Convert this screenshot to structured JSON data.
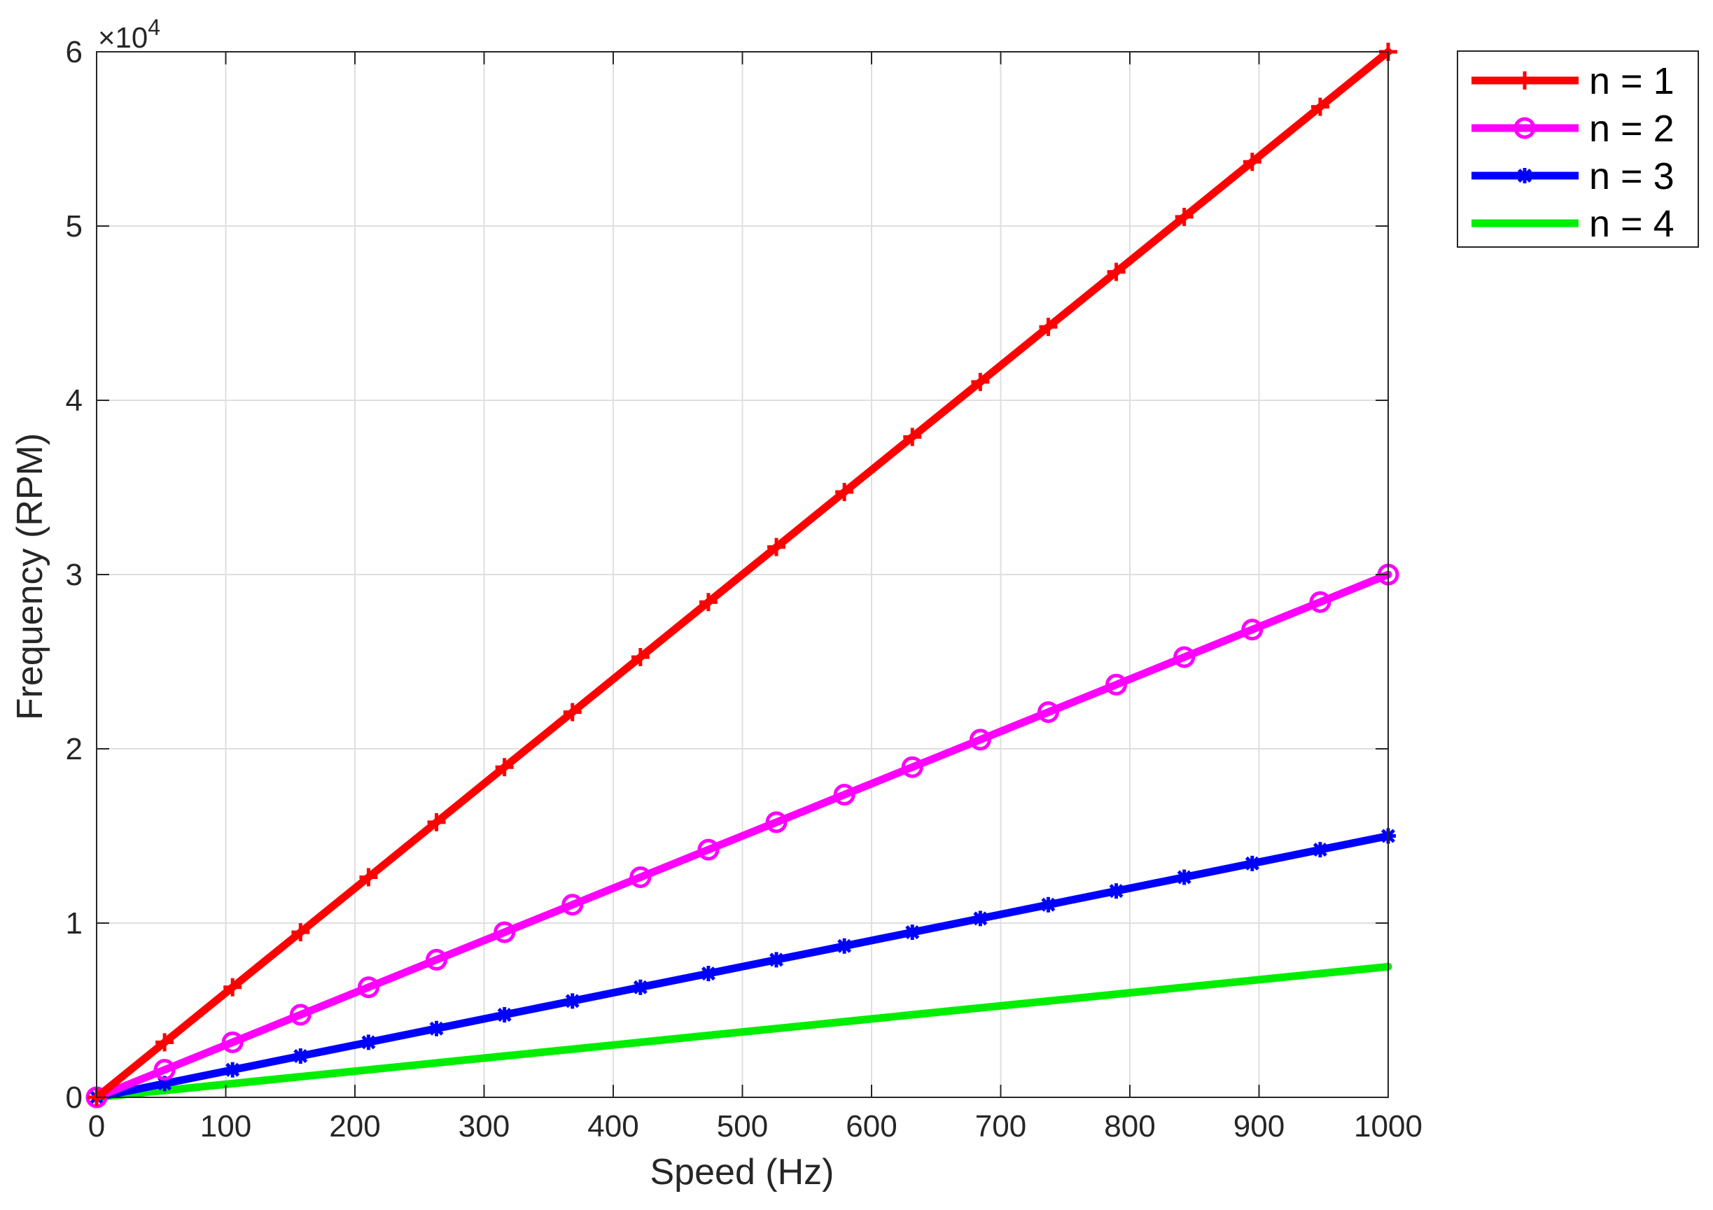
{
  "chart_data": {
    "type": "line",
    "title": "",
    "xlabel": "Speed (Hz)",
    "ylabel": "Frequency (RPM)",
    "xlim": [
      0,
      1000
    ],
    "ylim": [
      0,
      60000
    ],
    "xticks": [
      0,
      100,
      200,
      300,
      400,
      500,
      600,
      700,
      800,
      900,
      1000
    ],
    "xtick_labels": [
      "0",
      "100",
      "200",
      "300",
      "400",
      "500",
      "600",
      "700",
      "800",
      "900",
      "1000"
    ],
    "yticks": [
      0,
      10000,
      20000,
      30000,
      40000,
      50000,
      60000
    ],
    "ytick_labels": [
      "0",
      "1",
      "2",
      "3",
      "4",
      "5",
      "6"
    ],
    "y_exponent_label": "×10",
    "y_exponent_power": "4",
    "grid": true,
    "legend_position": "outside-top-right",
    "x": [
      0,
      52.63,
      105.26,
      157.89,
      210.53,
      263.16,
      315.79,
      368.42,
      421.05,
      473.68,
      526.32,
      578.95,
      631.58,
      684.21,
      736.84,
      789.47,
      842.11,
      894.74,
      947.37,
      1000
    ],
    "series": [
      {
        "name": "n = 1",
        "color": "#ff0000",
        "marker": "plus",
        "values": [
          0,
          3158,
          6316,
          9474,
          12632,
          15789,
          18947,
          22105,
          25263,
          28421,
          31579,
          34737,
          37895,
          41053,
          44211,
          47368,
          50526,
          53684,
          56842,
          60000
        ]
      },
      {
        "name": "n = 2",
        "color": "#ff00ff",
        "marker": "circle",
        "values": [
          0,
          1579,
          3158,
          4737,
          6316,
          7895,
          9474,
          11053,
          12632,
          14211,
          15789,
          17368,
          18947,
          20526,
          22105,
          23684,
          25263,
          26842,
          28421,
          30000
        ]
      },
      {
        "name": "n = 3",
        "color": "#0000ff",
        "marker": "asterisk",
        "values": [
          0,
          789,
          1579,
          2368,
          3158,
          3947,
          4737,
          5526,
          6316,
          7105,
          7895,
          8684,
          9474,
          10263,
          11053,
          11842,
          12632,
          13421,
          14211,
          15000
        ]
      },
      {
        "name": "n = 4",
        "color": "#00ee00",
        "marker": "none",
        "values": [
          0,
          395,
          789,
          1184,
          1579,
          1974,
          2368,
          2763,
          3158,
          3553,
          3947,
          4342,
          4737,
          5132,
          5526,
          5921,
          6316,
          6711,
          7105,
          7500
        ]
      }
    ]
  }
}
